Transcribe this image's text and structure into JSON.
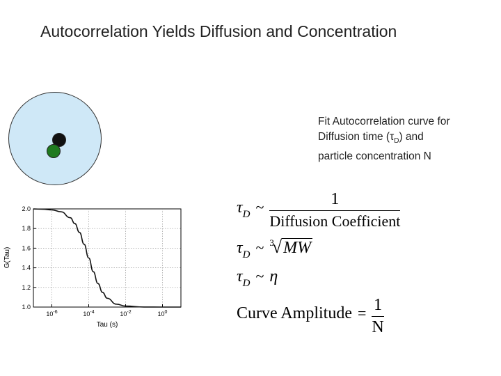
{
  "slide": {
    "title": "Autocorrelation Yields Diffusion and Concentration"
  },
  "caption": {
    "line1": "Fit Autocorrelation curve for",
    "line2_pre": "Diffusion time (",
    "line2_tau": "τ",
    "line2_sub": "D",
    "line2_post": ") and",
    "line3": "particle concentration N"
  },
  "colors": {
    "focal_volume": "#cfe8f7",
    "particle_black": "#111111",
    "particle_green": "#1f7a1f"
  },
  "equations": {
    "eq1": {
      "lhs": "τ",
      "lhs_sub": "D",
      "rel": "~",
      "numerator": "1",
      "denominator": "Diffusion Coefficient"
    },
    "eq2": {
      "lhs": "τ",
      "lhs_sub": "D",
      "rel": "~",
      "root_index": "3",
      "radicand": "MW"
    },
    "eq3": {
      "lhs": "τ",
      "lhs_sub": "D",
      "rel": "~",
      "rhs": "η"
    },
    "eq4": {
      "lhs": "Curve Amplitude",
      "rel": "=",
      "numerator": "1",
      "denominator": "N"
    }
  },
  "chart_data": {
    "type": "line",
    "xlabel": "Tau (s)",
    "ylabel": "G(Tau)",
    "x_scale": "log",
    "xlim_exp": [
      -7,
      1
    ],
    "ylim": [
      1.0,
      2.0
    ],
    "x_tick_labels": [
      "10-6",
      "10-4",
      "10-2",
      "100"
    ],
    "x_tick_exps": [
      -6,
      -4,
      -2,
      0
    ],
    "y_ticks": [
      1.0,
      1.2,
      1.4,
      1.6,
      1.8,
      2.0
    ],
    "y_tick_labels": [
      "1.0",
      "1.2",
      "1.4",
      "1.6",
      "1.8",
      "2.0"
    ],
    "grid": true,
    "series": [
      {
        "x_exp": [
          -7,
          -6.5,
          -6,
          -5.5,
          -5,
          -4.75,
          -4.5,
          -4.25,
          -4,
          -3.75,
          -3.5,
          -3.25,
          -3,
          -2.5,
          -2,
          -1,
          0,
          1
        ],
        "y": [
          1.999,
          1.997,
          1.99,
          1.97,
          1.91,
          1.85,
          1.76,
          1.64,
          1.5,
          1.36,
          1.24,
          1.15,
          1.09,
          1.03,
          1.01,
          1.001,
          1.0,
          1.0
        ]
      }
    ]
  }
}
